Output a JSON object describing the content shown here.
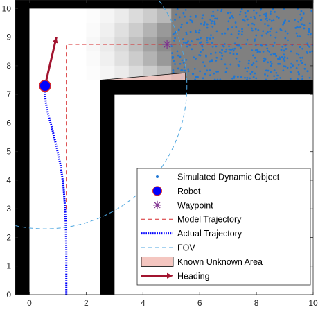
{
  "chart_data": {
    "type": "scatter",
    "title": "",
    "xlabel": "",
    "ylabel": "",
    "xlim": [
      -0.5,
      10
    ],
    "ylim": [
      0,
      10.3
    ],
    "x_ticks": [
      0,
      2,
      4,
      6,
      8,
      10
    ],
    "y_ticks": [
      0,
      1,
      2,
      3,
      4,
      5,
      6,
      7,
      8,
      9,
      10
    ],
    "x_tick_labels": [
      "0",
      "2",
      "4",
      "6",
      "8",
      "10"
    ],
    "y_tick_labels": [
      "0",
      "1",
      "2",
      "3",
      "4",
      "5",
      "6",
      "7",
      "8",
      "9",
      "10"
    ],
    "grid": false,
    "legend_position": "lower-right",
    "walls": [
      {
        "x": [
          -0.5,
          0
        ],
        "y": [
          0,
          10.3
        ]
      },
      {
        "x": [
          -0.5,
          10
        ],
        "y": [
          10,
          10.3
        ]
      },
      {
        "x": [
          2.5,
          3
        ],
        "y": [
          0,
          7.5
        ]
      },
      {
        "x": [
          2.5,
          10
        ],
        "y": [
          7,
          7.5
        ]
      }
    ],
    "corridor_cost_map": {
      "x_range": [
        1.5,
        5
      ],
      "y_range": [
        7.5,
        10
      ],
      "cols": 7,
      "rows": 5,
      "gray_levels": [
        [
          1.0,
          0.99,
          0.96,
          0.92,
          0.86,
          0.8,
          0.72
        ],
        [
          1.0,
          0.98,
          0.94,
          0.88,
          0.8,
          0.7,
          0.6
        ],
        [
          1.0,
          0.97,
          0.92,
          0.85,
          0.75,
          0.64,
          0.55
        ],
        [
          1.0,
          0.98,
          0.94,
          0.88,
          0.8,
          0.7,
          0.6
        ],
        [
          1.0,
          0.99,
          0.96,
          0.92,
          0.86,
          0.8,
          0.72
        ]
      ]
    },
    "unknown_region": {
      "x_range": [
        5,
        10
      ],
      "y_range": [
        7.5,
        10
      ],
      "color": "#808080"
    },
    "dynamic_objects": {
      "x_range": [
        5,
        10
      ],
      "y_range": [
        7.5,
        10
      ],
      "count": 420,
      "color": "#1f77d4"
    },
    "known_unknown_area": {
      "x": [
        2.5,
        5.5,
        5.5,
        2.5
      ],
      "y": [
        7.5,
        7.75,
        7.0,
        7.0
      ],
      "color": "#f4c6c0"
    },
    "robot": {
      "x": 0.55,
      "y": 7.3,
      "color": "#0000ff"
    },
    "heading": {
      "x": [
        0.55,
        0.95
      ],
      "y": [
        7.3,
        9.0
      ],
      "color": "#a2142f"
    },
    "waypoint": {
      "x": 4.85,
      "y": 8.75,
      "color": "#7e2f8e"
    },
    "model_trajectory": {
      "x": [
        1.3,
        1.3,
        10
      ],
      "y": [
        3.0,
        8.75,
        8.75
      ],
      "color": "#d62728"
    },
    "actual_trajectory": {
      "x": [
        1.3,
        1.3,
        1.28,
        1.25,
        1.2,
        1.1,
        0.95,
        0.8,
        0.66,
        0.58,
        0.55,
        0.55
      ],
      "y": [
        0,
        1.5,
        2.5,
        3.1,
        3.8,
        4.5,
        5.2,
        5.8,
        6.3,
        6.7,
        7.0,
        7.3
      ],
      "color": "#0000ff"
    },
    "fov": {
      "cx": 0.55,
      "cy": 7.3,
      "r": 5.0,
      "color": "#4da6e0"
    },
    "legend": [
      {
        "label": "Simulated Dynamic Object",
        "symbol": "dot",
        "color": "#1f77d4"
      },
      {
        "label": "Robot",
        "symbol": "circle",
        "color": "#0000ff"
      },
      {
        "label": "Waypoint",
        "symbol": "asterisk",
        "color": "#7e2f8e"
      },
      {
        "label": "Model Trajectory",
        "symbol": "dash-line",
        "color": "#d62728"
      },
      {
        "label": "Actual Trajectory",
        "symbol": "dotted-line",
        "color": "#0000ff"
      },
      {
        "label": "FOV",
        "symbol": "dash-line",
        "color": "#4da6e0"
      },
      {
        "label": "Known Unknown Area",
        "symbol": "patch",
        "color": "#f4c6c0"
      },
      {
        "label": "Heading",
        "symbol": "arrow",
        "color": "#a2142f"
      }
    ]
  }
}
